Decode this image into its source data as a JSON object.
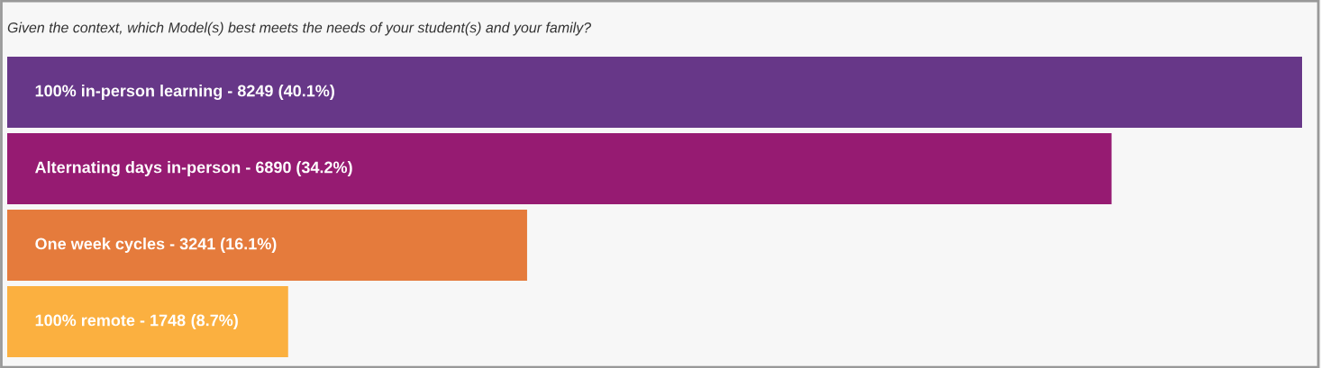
{
  "chart_data": {
    "type": "bar",
    "orientation": "horizontal",
    "title": "Given the context, which Model(s) best meets the needs of your student(s) and your family?",
    "categories": [
      "100% in-person learning - 8249",
      "Alternating days in-person - 6890",
      "One week cycles - 3241",
      "100% remote - 1748"
    ],
    "values": [
      40.1,
      34.2,
      16.1,
      8.7
    ],
    "colors": [
      "#673788",
      "#961b72",
      "#e57b3c",
      "#fbb040"
    ],
    "value_labels": [
      "(40.1%)",
      "(34.2%)",
      "(16.1%)",
      "(8.7%)"
    ]
  }
}
